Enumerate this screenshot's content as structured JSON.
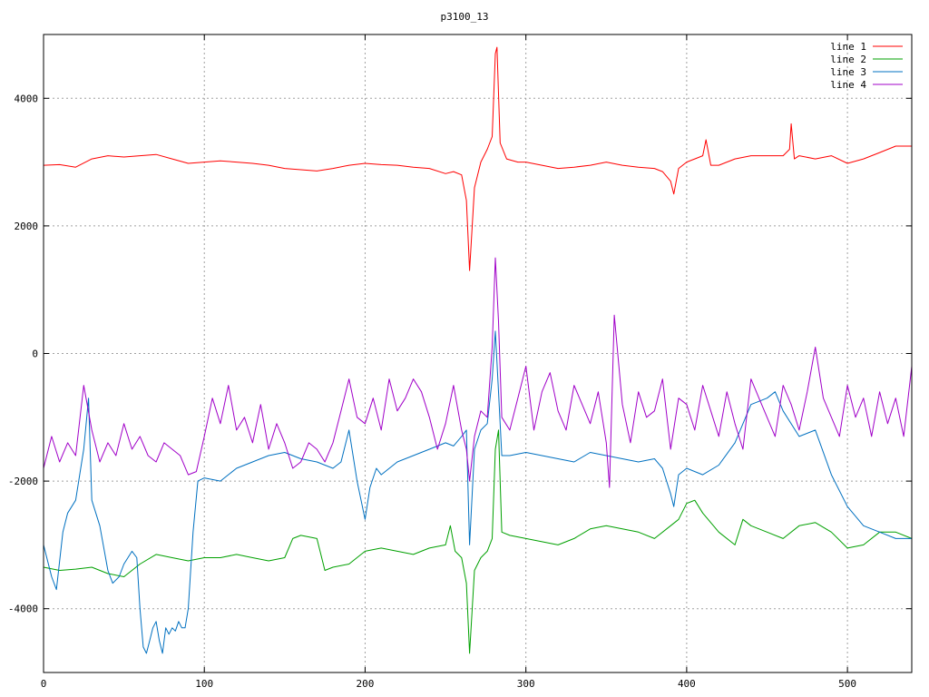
{
  "chart_data": {
    "type": "line",
    "title": "p3100_13",
    "xlabel": "",
    "ylabel": "",
    "xlim": [
      0,
      540
    ],
    "ylim": [
      -5000,
      5000
    ],
    "xticks": [
      0,
      100,
      200,
      300,
      400,
      500
    ],
    "yticks": [
      -4000,
      -2000,
      0,
      2000,
      4000
    ],
    "grid": true,
    "legend_position": "top-right",
    "series": [
      {
        "name": "line 1",
        "color": "#ff0000",
        "x": [
          0,
          10,
          20,
          30,
          40,
          50,
          60,
          70,
          80,
          90,
          100,
          110,
          120,
          130,
          140,
          150,
          160,
          170,
          180,
          190,
          200,
          210,
          220,
          230,
          240,
          250,
          255,
          260,
          263,
          265,
          268,
          272,
          276,
          279,
          281,
          282,
          284,
          288,
          295,
          300,
          310,
          320,
          330,
          340,
          350,
          360,
          370,
          380,
          385,
          390,
          392,
          395,
          400,
          405,
          410,
          412,
          415,
          420,
          430,
          440,
          450,
          460,
          464,
          465,
          467,
          470,
          480,
          490,
          500,
          510,
          520,
          530,
          540
        ],
        "values": [
          2950,
          2960,
          2920,
          3050,
          3100,
          3080,
          3100,
          3120,
          3050,
          2980,
          3000,
          3020,
          3000,
          2980,
          2950,
          2900,
          2880,
          2860,
          2900,
          2950,
          2980,
          2960,
          2950,
          2920,
          2900,
          2820,
          2850,
          2800,
          2400,
          1300,
          2600,
          3000,
          3200,
          3400,
          4700,
          4800,
          3300,
          3050,
          3000,
          3000,
          2950,
          2900,
          2920,
          2950,
          3000,
          2950,
          2920,
          2900,
          2850,
          2700,
          2500,
          2900,
          3000,
          3050,
          3100,
          3350,
          2950,
          2950,
          3050,
          3100,
          3100,
          3100,
          3200,
          3600,
          3050,
          3100,
          3050,
          3100,
          2980,
          3050,
          3150,
          3250,
          3250
        ]
      },
      {
        "name": "line 2",
        "color": "#00a000",
        "x": [
          0,
          10,
          20,
          30,
          40,
          50,
          60,
          70,
          80,
          90,
          100,
          110,
          120,
          130,
          140,
          150,
          155,
          160,
          170,
          175,
          180,
          190,
          200,
          210,
          220,
          230,
          240,
          250,
          253,
          256,
          260,
          263,
          265,
          268,
          272,
          276,
          279,
          281,
          283,
          285,
          290,
          300,
          310,
          320,
          330,
          340,
          350,
          360,
          370,
          380,
          390,
          395,
          400,
          405,
          410,
          420,
          430,
          435,
          440,
          450,
          460,
          470,
          480,
          490,
          500,
          510,
          520,
          530,
          540
        ],
        "values": [
          -3350,
          -3400,
          -3380,
          -3350,
          -3450,
          -3500,
          -3300,
          -3150,
          -3200,
          -3250,
          -3200,
          -3200,
          -3150,
          -3200,
          -3250,
          -3200,
          -2900,
          -2850,
          -2900,
          -3400,
          -3350,
          -3300,
          -3100,
          -3050,
          -3100,
          -3150,
          -3050,
          -3000,
          -2700,
          -3100,
          -3200,
          -3600,
          -4700,
          -3400,
          -3200,
          -3100,
          -2900,
          -1500,
          -1200,
          -2800,
          -2850,
          -2900,
          -2950,
          -3000,
          -2900,
          -2750,
          -2700,
          -2750,
          -2800,
          -2900,
          -2700,
          -2600,
          -2350,
          -2300,
          -2500,
          -2800,
          -3000,
          -2600,
          -2700,
          -2800,
          -2900,
          -2700,
          -2650,
          -2800,
          -3050,
          -3000,
          -2800,
          -2800,
          -2900
        ]
      },
      {
        "name": "line 3",
        "color": "#0070c0",
        "x": [
          0,
          5,
          8,
          12,
          15,
          20,
          25,
          28,
          30,
          35,
          40,
          43,
          47,
          50,
          55,
          58,
          60,
          62,
          64,
          66,
          68,
          70,
          72,
          74,
          76,
          78,
          80,
          82,
          84,
          86,
          88,
          90,
          93,
          96,
          100,
          110,
          120,
          130,
          140,
          150,
          160,
          170,
          180,
          185,
          190,
          195,
          200,
          203,
          207,
          210,
          220,
          230,
          240,
          250,
          255,
          260,
          263,
          265,
          268,
          272,
          276,
          279,
          281,
          283,
          285,
          290,
          300,
          310,
          320,
          330,
          340,
          350,
          360,
          370,
          380,
          385,
          390,
          392,
          395,
          400,
          410,
          420,
          430,
          440,
          450,
          455,
          460,
          470,
          480,
          490,
          500,
          510,
          520,
          530,
          540
        ],
        "values": [
          -3000,
          -3500,
          -3700,
          -2800,
          -2500,
          -2300,
          -1500,
          -700,
          -2300,
          -2700,
          -3400,
          -3600,
          -3500,
          -3300,
          -3100,
          -3200,
          -4000,
          -4600,
          -4700,
          -4500,
          -4300,
          -4200,
          -4500,
          -4700,
          -4300,
          -4400,
          -4300,
          -4350,
          -4200,
          -4300,
          -4300,
          -4000,
          -2800,
          -2000,
          -1950,
          -2000,
          -1800,
          -1700,
          -1600,
          -1550,
          -1650,
          -1700,
          -1800,
          -1700,
          -1200,
          -2000,
          -2600,
          -2100,
          -1800,
          -1900,
          -1700,
          -1600,
          -1500,
          -1400,
          -1450,
          -1300,
          -1200,
          -3000,
          -1500,
          -1200,
          -1100,
          -400,
          350,
          -600,
          -1600,
          -1600,
          -1550,
          -1600,
          -1650,
          -1700,
          -1550,
          -1600,
          -1650,
          -1700,
          -1650,
          -1800,
          -2200,
          -2400,
          -1900,
          -1800,
          -1900,
          -1750,
          -1400,
          -800,
          -700,
          -600,
          -900,
          -1300,
          -1200,
          -1900,
          -2400,
          -2700,
          -2800,
          -2900,
          -2900
        ]
      },
      {
        "name": "line 4",
        "color": "#a000c8",
        "x": [
          0,
          5,
          10,
          15,
          20,
          25,
          30,
          35,
          40,
          45,
          50,
          55,
          60,
          65,
          70,
          75,
          80,
          85,
          90,
          95,
          100,
          105,
          110,
          115,
          120,
          125,
          130,
          135,
          140,
          145,
          150,
          155,
          160,
          165,
          170,
          175,
          180,
          185,
          190,
          195,
          200,
          205,
          210,
          215,
          220,
          225,
          230,
          235,
          240,
          245,
          250,
          255,
          260,
          263,
          265,
          268,
          272,
          276,
          279,
          281,
          283,
          285,
          290,
          295,
          300,
          305,
          310,
          315,
          320,
          325,
          330,
          335,
          340,
          345,
          350,
          352,
          355,
          360,
          365,
          370,
          375,
          380,
          385,
          390,
          395,
          400,
          405,
          410,
          415,
          420,
          425,
          430,
          435,
          440,
          445,
          450,
          455,
          460,
          465,
          470,
          475,
          480,
          485,
          490,
          495,
          500,
          505,
          510,
          515,
          520,
          525,
          530,
          535,
          540
        ],
        "values": [
          -1800,
          -1300,
          -1700,
          -1400,
          -1600,
          -500,
          -1200,
          -1700,
          -1400,
          -1600,
          -1100,
          -1500,
          -1300,
          -1600,
          -1700,
          -1400,
          -1500,
          -1600,
          -1900,
          -1850,
          -1300,
          -700,
          -1100,
          -500,
          -1200,
          -1000,
          -1400,
          -800,
          -1500,
          -1100,
          -1400,
          -1800,
          -1700,
          -1400,
          -1500,
          -1700,
          -1400,
          -900,
          -400,
          -1000,
          -1100,
          -700,
          -1200,
          -400,
          -900,
          -700,
          -400,
          -600,
          -1000,
          -1500,
          -1100,
          -500,
          -1200,
          -1500,
          -2000,
          -1300,
          -900,
          -1000,
          100,
          1500,
          500,
          -1000,
          -1200,
          -700,
          -200,
          -1200,
          -600,
          -300,
          -900,
          -1200,
          -500,
          -800,
          -1100,
          -600,
          -1400,
          -2100,
          600,
          -800,
          -1400,
          -600,
          -1000,
          -900,
          -400,
          -1500,
          -700,
          -800,
          -1200,
          -500,
          -900,
          -1300,
          -600,
          -1100,
          -1500,
          -400,
          -700,
          -1000,
          -1300,
          -500,
          -800,
          -1200,
          -600,
          100,
          -700,
          -1000,
          -1300,
          -500,
          -1000,
          -700,
          -1300,
          -600,
          -1100,
          -700,
          -1300,
          -200
        ]
      }
    ]
  }
}
